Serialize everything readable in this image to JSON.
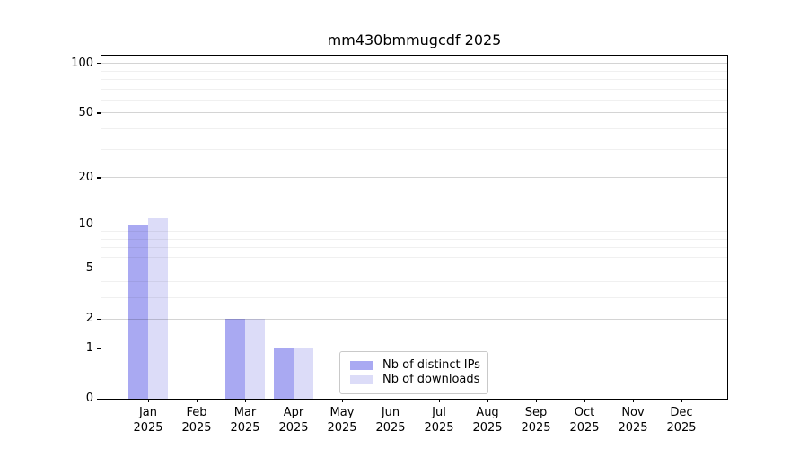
{
  "page": {
    "background": "#ffffff"
  },
  "chart_data": {
    "type": "bar",
    "title": "mm430bmmugcdf 2025",
    "categories": [
      "Jan",
      "Feb",
      "Mar",
      "Apr",
      "May",
      "Jun",
      "Jul",
      "Aug",
      "Sep",
      "Oct",
      "Nov",
      "Dec"
    ],
    "x_tick_year": "2025",
    "series": [
      {
        "name": "Nb of distinct IPs",
        "color": "#a9a9f2",
        "values": [
          10,
          0,
          2,
          1,
          0,
          0,
          0,
          0,
          0,
          0,
          0,
          0
        ]
      },
      {
        "name": "Nb of downloads",
        "color": "#dcdcf8",
        "values": [
          11,
          0,
          2,
          1,
          0,
          0,
          0,
          0,
          0,
          0,
          0,
          0
        ]
      }
    ],
    "y_axis": {
      "scale": "log1p",
      "ticks": [
        0,
        1,
        2,
        5,
        10,
        20,
        50,
        100
      ],
      "minor_gridlines": [
        3,
        4,
        6,
        7,
        8,
        9,
        30,
        40,
        60,
        70,
        80,
        90
      ],
      "ylim": [
        0,
        111.4
      ]
    },
    "xlabel": "",
    "ylabel": "",
    "grid": true,
    "legend": {
      "position": "lower center"
    }
  }
}
